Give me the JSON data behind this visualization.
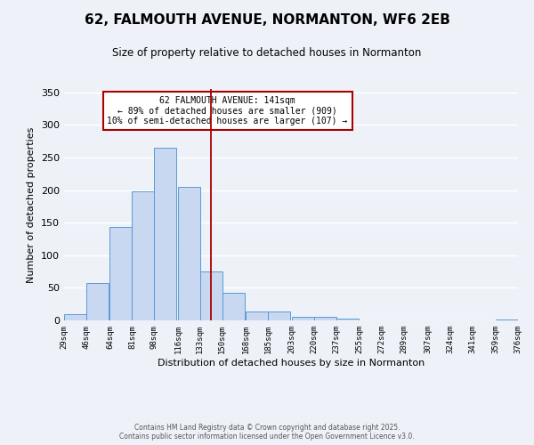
{
  "title": "62, FALMOUTH AVENUE, NORMANTON, WF6 2EB",
  "subtitle": "Size of property relative to detached houses in Normanton",
  "xlabel": "Distribution of detached houses by size in Normanton",
  "ylabel": "Number of detached properties",
  "bar_left_edges": [
    29,
    46,
    64,
    81,
    98,
    116,
    133,
    150,
    168,
    185,
    203,
    220,
    237,
    255,
    272,
    289,
    307,
    324,
    341,
    359
  ],
  "bar_heights": [
    10,
    57,
    144,
    198,
    265,
    205,
    75,
    42,
    13,
    13,
    6,
    6,
    3,
    0,
    0,
    0,
    0,
    0,
    0,
    2
  ],
  "bin_width": 17,
  "tick_labels": [
    "29sqm",
    "46sqm",
    "64sqm",
    "81sqm",
    "98sqm",
    "116sqm",
    "133sqm",
    "150sqm",
    "168sqm",
    "185sqm",
    "203sqm",
    "220sqm",
    "237sqm",
    "255sqm",
    "272sqm",
    "289sqm",
    "307sqm",
    "324sqm",
    "341sqm",
    "359sqm",
    "376sqm"
  ],
  "vline_x": 141,
  "vline_color": "#aa0000",
  "bar_facecolor": "#c8d8f0",
  "bar_edgecolor": "#5a9ad5",
  "ylim": [
    0,
    355
  ],
  "yticks": [
    0,
    50,
    100,
    150,
    200,
    250,
    300,
    350
  ],
  "annotation_title": "62 FALMOUTH AVENUE: 141sqm",
  "annotation_line1": "← 89% of detached houses are smaller (909)",
  "annotation_line2": "10% of semi-detached houses are larger (107) →",
  "annotation_box_color": "#aa0000",
  "footer_line1": "Contains HM Land Registry data © Crown copyright and database right 2025.",
  "footer_line2": "Contains public sector information licensed under the Open Government Licence v3.0.",
  "background_color": "#eef2f8",
  "grid_color": "#ffffff",
  "title_fontsize": 11,
  "subtitle_fontsize": 8.5,
  "tick_fontsize": 6.5,
  "ylabel_fontsize": 8,
  "xlabel_fontsize": 8,
  "footer_fontsize": 5.5,
  "annotation_fontsize": 7
}
